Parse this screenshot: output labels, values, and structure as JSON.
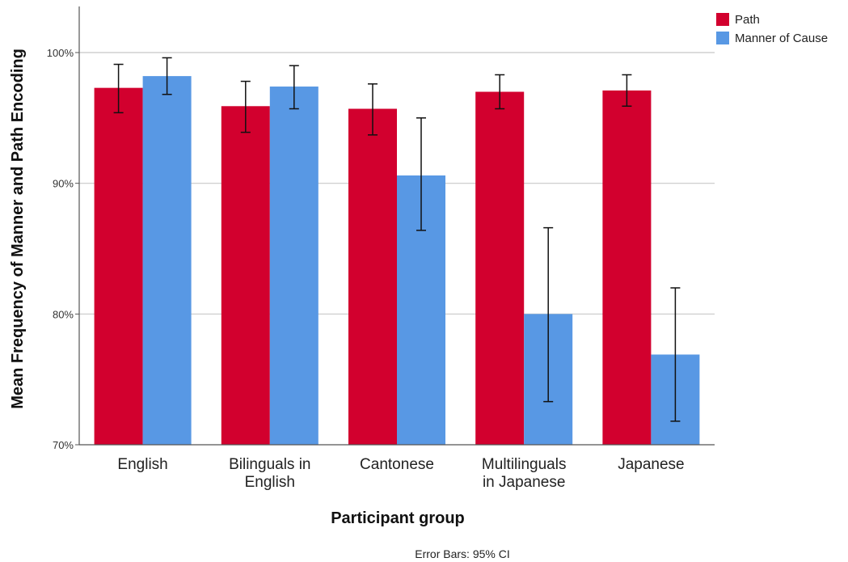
{
  "chart_data": {
    "type": "bar",
    "xlabel": "Participant group",
    "ylabel": "Mean Frequency of Manner and Path Encoding",
    "ylim": [
      70,
      100
    ],
    "yticks": [
      70,
      80,
      90,
      100
    ],
    "ytick_labels": [
      "70%",
      "80%",
      "90%",
      "100%"
    ],
    "grid": "horizontal",
    "legend_position": "top-right",
    "footnote": "Error Bars: 95% CI",
    "categories": [
      [
        "English"
      ],
      [
        "Bilinguals in",
        "English"
      ],
      [
        "Cantonese"
      ],
      [
        "Multilinguals",
        "in Japanese"
      ],
      [
        "Japanese"
      ]
    ],
    "series": [
      {
        "name": "Path",
        "color": "#d2002e",
        "values": [
          97.3,
          95.9,
          95.7,
          97.0,
          97.1
        ],
        "ci_low": [
          95.4,
          93.9,
          93.7,
          95.7,
          95.9
        ],
        "ci_high": [
          99.1,
          97.8,
          97.6,
          98.3,
          98.3
        ]
      },
      {
        "name": "Manner of Cause",
        "color": "#5898e4",
        "values": [
          98.2,
          97.4,
          90.6,
          80.0,
          76.9
        ],
        "ci_low": [
          96.8,
          95.7,
          86.4,
          73.3,
          71.8
        ],
        "ci_high": [
          99.6,
          99.0,
          95.0,
          86.6,
          82.0
        ]
      }
    ]
  }
}
